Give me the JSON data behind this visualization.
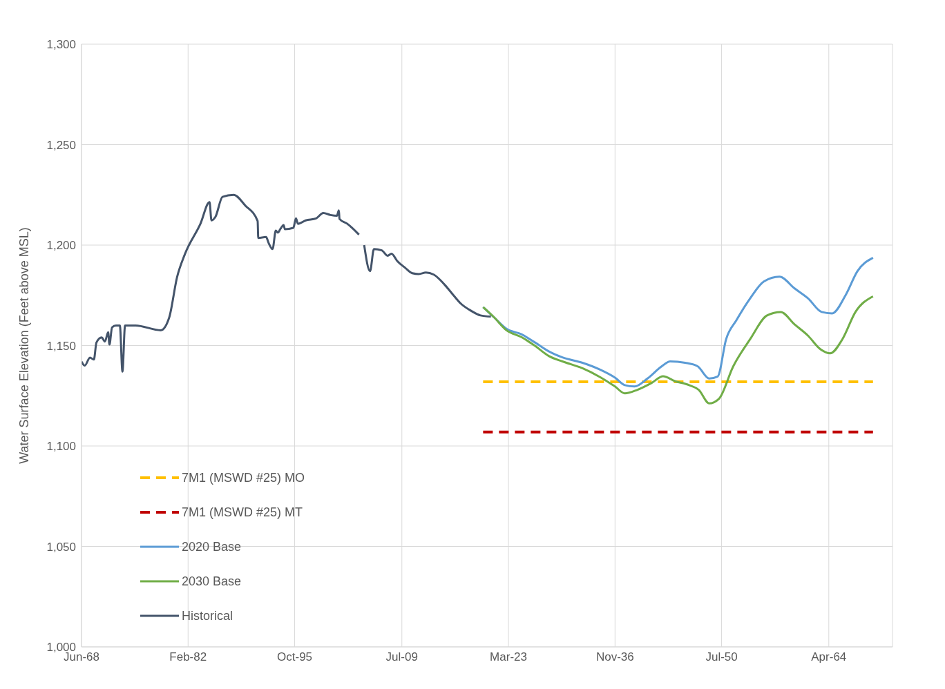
{
  "chart_data": {
    "type": "line",
    "ylabel": "Water Surface Elevation (Feet above MSL)",
    "xlim": [
      "1968-06",
      "2072-06"
    ],
    "xticks": [
      {
        "value": "1968-06",
        "label": "Jun-68"
      },
      {
        "value": "1982-02",
        "label": "Feb-82"
      },
      {
        "value": "1995-10",
        "label": "Oct-95"
      },
      {
        "value": "2009-07",
        "label": "Jul-09"
      },
      {
        "value": "2023-03",
        "label": "Mar-23"
      },
      {
        "value": "2036-11",
        "label": "Nov-36"
      },
      {
        "value": "2050-07",
        "label": "Jul-50"
      },
      {
        "value": "2064-04",
        "label": "Apr-64"
      }
    ],
    "ylim": [
      1000,
      1300
    ],
    "yticks": [
      {
        "value": 1000,
        "label": "1,000"
      },
      {
        "value": 1050,
        "label": "1,050"
      },
      {
        "value": 1100,
        "label": "1,100"
      },
      {
        "value": 1150,
        "label": "1,150"
      },
      {
        "value": 1200,
        "label": "1,200"
      },
      {
        "value": 1250,
        "label": "1,250"
      },
      {
        "value": 1300,
        "label": "1,300"
      }
    ],
    "grid": true,
    "legend": "bottom left",
    "marker": "none",
    "series": [
      {
        "name": "7M1 (MSWD #25) MO",
        "color": "#ffc000",
        "line_style": "dashed",
        "x": [
          "2019-12",
          "2069-12"
        ],
        "values": [
          1132,
          1132
        ]
      },
      {
        "name": "7M1 (MSWD #25) MT",
        "color": "#c00000",
        "line_style": "dashed",
        "x": [
          "2019-12",
          "2069-12"
        ],
        "values": [
          1107,
          1107
        ]
      },
      {
        "name": "2020 Base",
        "color": "#5b9bd5",
        "line_style": "solid",
        "x": [
          "2019-12",
          "2021-05",
          "2022-12",
          "2024-11",
          "2026-08",
          "2028-05",
          "2030-02",
          "2032-09",
          "2034-12",
          "2036-11",
          "2038-02",
          "2039-05",
          "2041-01",
          "2042-11",
          "2043-12",
          "2045-11",
          "2047-06",
          "2048-12",
          "2050-01",
          "2051-02",
          "2052-06",
          "2054-03",
          "2055-12",
          "2057-12",
          "2059-11",
          "2061-08",
          "2063-05",
          "2064-09",
          "2066-06",
          "2067-12",
          "2069-12"
        ],
        "values": [
          1169.1,
          1164,
          1158.3,
          1155.6,
          1151.5,
          1147.1,
          1144.1,
          1141.4,
          1138,
          1134,
          1130.3,
          1129.6,
          1133.6,
          1139.7,
          1142.1,
          1141.4,
          1139.7,
          1133.6,
          1134.6,
          1153.2,
          1162.7,
          1173.5,
          1181.9,
          1184.3,
          1178.5,
          1173.5,
          1166.7,
          1166,
          1175.2,
          1187,
          1193.7
        ]
      },
      {
        "name": "2030 Base",
        "color": "#70ad47",
        "line_style": "solid",
        "x": [
          "2019-12",
          "2021-05",
          "2022-12",
          "2024-11",
          "2026-08",
          "2028-05",
          "2030-02",
          "2032-09",
          "2034-12",
          "2036-11",
          "2038-02",
          "2039-09",
          "2041-07",
          "2043-01",
          "2044-07",
          "2046-05",
          "2047-08",
          "2048-12",
          "2050-03",
          "2052-01",
          "2054-03",
          "2056-05",
          "2058-02",
          "2059-11",
          "2061-08",
          "2063-03",
          "2064-06",
          "2066-01",
          "2067-09",
          "2069-12"
        ],
        "values": [
          1169.1,
          1164,
          1157.6,
          1154.2,
          1149.8,
          1144.8,
          1142.1,
          1138.7,
          1134.3,
          1129.6,
          1126.2,
          1127.9,
          1131.3,
          1134.7,
          1132.3,
          1130.3,
          1127.9,
          1121.2,
          1123.5,
          1139.7,
          1153.2,
          1165,
          1166.7,
          1160.6,
          1154.9,
          1148.2,
          1146.1,
          1153.2,
          1166.7,
          1174.5
        ]
      },
      {
        "name": "Historical",
        "color": "#44546a",
        "line_style": "solid",
        "x": [
          "1968-06",
          "1968-11",
          "1969-07",
          "1970-01",
          "1970-05",
          "1971-01",
          "1971-06",
          "1971-11",
          "1972-01",
          "1972-05",
          "1972-11",
          "1973-05",
          "1973-09",
          "1974-01",
          "1975-05",
          "1978-08",
          "1979-09",
          "1980-09",
          "1981-09",
          "1983-09",
          "1984-11",
          "1985-02",
          "1985-08",
          "1986-07",
          "1987-12",
          "1989-06",
          "1991-01",
          "1991-02",
          "1992-02",
          "1992-06",
          "1992-12",
          "1993-05",
          "1993-08",
          "1993-12",
          "1994-05",
          "1994-07",
          "1995-08",
          "1995-12",
          "1996-03",
          "1997-03",
          "1998-07",
          "1999-06",
          "2000-05",
          "2001-03",
          "2001-06",
          "2001-07",
          "2002-07",
          "2004-01",
          "2004-05",
          "2004-09",
          "2005-06",
          "2005-12",
          "2006-12",
          "2007-09",
          "2008-03",
          "2008-12",
          "2009-12",
          "2010-11",
          "2011-09",
          "2012-08",
          "2013-08",
          "2015-01",
          "2016-02",
          "2017-02",
          "2018-05",
          "2019-08",
          "2020-12"
        ],
        "values": [
          1142,
          1140,
          1144,
          1143,
          1151.5,
          1154,
          1152,
          1156.6,
          1150.5,
          1159,
          1160,
          1160,
          1137,
          1160,
          1160,
          1157.6,
          1164,
          1184,
          1195.4,
          1210.6,
          1221.4,
          1212.3,
          1214,
          1224,
          1225,
          1219.7,
          1212,
          1203.5,
          1204,
          1201,
          1198,
          1207.2,
          1206.2,
          1208,
          1210,
          1207.9,
          1208.6,
          1213.3,
          1210.6,
          1212.3,
          1213.3,
          1216,
          1215,
          1214.6,
          1217.3,
          1213,
          1210.6,
          1205.2,
          null,
          1200,
          1187,
          1198,
          1197.4,
          1194.7,
          1195.7,
          1192,
          1188.7,
          1186,
          1185.6,
          1186.3,
          1185.3,
          1180.2,
          1175.2,
          1170.8,
          1167.4,
          1165,
          1164.4
        ]
      }
    ]
  }
}
